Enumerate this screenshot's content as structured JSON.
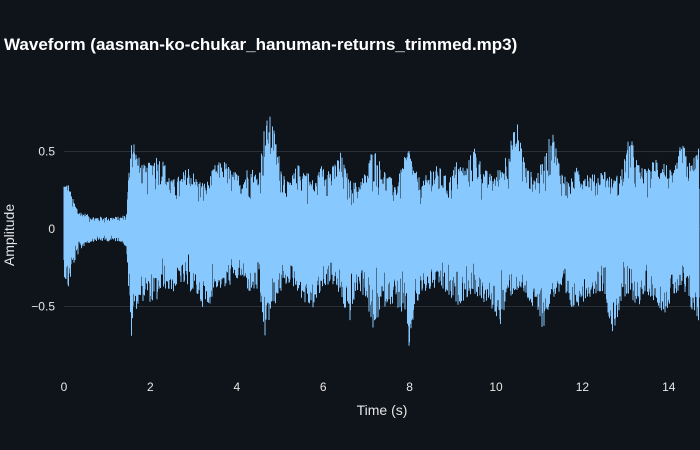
{
  "chart_data": {
    "type": "line",
    "title": "Waveform (aasman-ko-chukar_hanuman-returns_trimmed.mp3)",
    "xlabel": "Time (s)",
    "ylabel": "Amplitude",
    "xlim": [
      0,
      14.7
    ],
    "ylim": [
      -1.0,
      1.0
    ],
    "x_ticks": [
      {
        "value": 0,
        "label": "0"
      },
      {
        "value": 2,
        "label": "2"
      },
      {
        "value": 4,
        "label": "4"
      },
      {
        "value": 6,
        "label": "6"
      },
      {
        "value": 8,
        "label": "8"
      },
      {
        "value": 10,
        "label": "10"
      },
      {
        "value": 12,
        "label": "12"
      },
      {
        "value": 14,
        "label": "14"
      }
    ],
    "y_ticks": [
      {
        "value": 0.5,
        "label": "0.5"
      },
      {
        "value": 0,
        "label": "0"
      },
      {
        "value": -0.5,
        "label": "−0.5"
      }
    ],
    "grid": true,
    "line_color": "#87c9ff",
    "background_color": "#0f131a",
    "grid_color": "#2a2f38",
    "series": [
      {
        "x": [
          0,
          0.1,
          0.2,
          0.35,
          0.5,
          0.7,
          0.9,
          1.1,
          1.3,
          1.45,
          1.55,
          1.6,
          1.7,
          1.9,
          2.1,
          2.3,
          2.5,
          2.7,
          2.9,
          3.1,
          3.3,
          3.5,
          3.7,
          3.9,
          4.1,
          4.3,
          4.5,
          4.65,
          4.8,
          5.0,
          5.2,
          5.4,
          5.6,
          5.8,
          6.0,
          6.2,
          6.4,
          6.6,
          6.8,
          7.0,
          7.15,
          7.3,
          7.5,
          7.7,
          7.9,
          8.0,
          8.1,
          8.3,
          8.5,
          8.7,
          8.9,
          9.1,
          9.3,
          9.5,
          9.7,
          9.9,
          10.1,
          10.3,
          10.5,
          10.7,
          10.9,
          11.1,
          11.3,
          11.5,
          11.7,
          11.9,
          12.1,
          12.3,
          12.5,
          12.7,
          12.9,
          13.1,
          13.3,
          13.5,
          13.7,
          13.9,
          14.1,
          14.3,
          14.5,
          14.7
        ],
        "max": [
          0.32,
          0.3,
          0.2,
          0.12,
          0.1,
          0.08,
          0.08,
          0.08,
          0.08,
          0.1,
          0.65,
          0.62,
          0.48,
          0.4,
          0.5,
          0.45,
          0.32,
          0.35,
          0.42,
          0.32,
          0.3,
          0.42,
          0.45,
          0.38,
          0.35,
          0.42,
          0.35,
          0.7,
          0.74,
          0.45,
          0.3,
          0.42,
          0.4,
          0.3,
          0.45,
          0.4,
          0.5,
          0.32,
          0.3,
          0.38,
          0.55,
          0.45,
          0.35,
          0.3,
          0.48,
          0.55,
          0.4,
          0.3,
          0.42,
          0.4,
          0.32,
          0.45,
          0.4,
          0.55,
          0.4,
          0.35,
          0.4,
          0.55,
          0.7,
          0.4,
          0.35,
          0.45,
          0.66,
          0.4,
          0.3,
          0.42,
          0.38,
          0.35,
          0.4,
          0.32,
          0.38,
          0.62,
          0.42,
          0.38,
          0.48,
          0.45,
          0.35,
          0.58,
          0.42,
          0.55
        ],
        "min": [
          -0.3,
          -0.4,
          -0.25,
          -0.15,
          -0.1,
          -0.08,
          -0.08,
          -0.08,
          -0.08,
          -0.12,
          -0.76,
          -0.58,
          -0.5,
          -0.45,
          -0.5,
          -0.38,
          -0.42,
          -0.35,
          -0.4,
          -0.45,
          -0.55,
          -0.38,
          -0.4,
          -0.35,
          -0.32,
          -0.42,
          -0.4,
          -0.72,
          -0.55,
          -0.42,
          -0.35,
          -0.4,
          -0.5,
          -0.52,
          -0.38,
          -0.35,
          -0.45,
          -0.62,
          -0.4,
          -0.45,
          -0.7,
          -0.55,
          -0.48,
          -0.5,
          -0.6,
          -0.82,
          -0.55,
          -0.42,
          -0.4,
          -0.38,
          -0.45,
          -0.5,
          -0.45,
          -0.42,
          -0.48,
          -0.52,
          -0.62,
          -0.45,
          -0.4,
          -0.45,
          -0.55,
          -0.65,
          -0.45,
          -0.42,
          -0.55,
          -0.5,
          -0.45,
          -0.42,
          -0.4,
          -0.7,
          -0.48,
          -0.45,
          -0.5,
          -0.42,
          -0.48,
          -0.55,
          -0.45,
          -0.4,
          -0.52,
          -0.62
        ]
      }
    ]
  }
}
